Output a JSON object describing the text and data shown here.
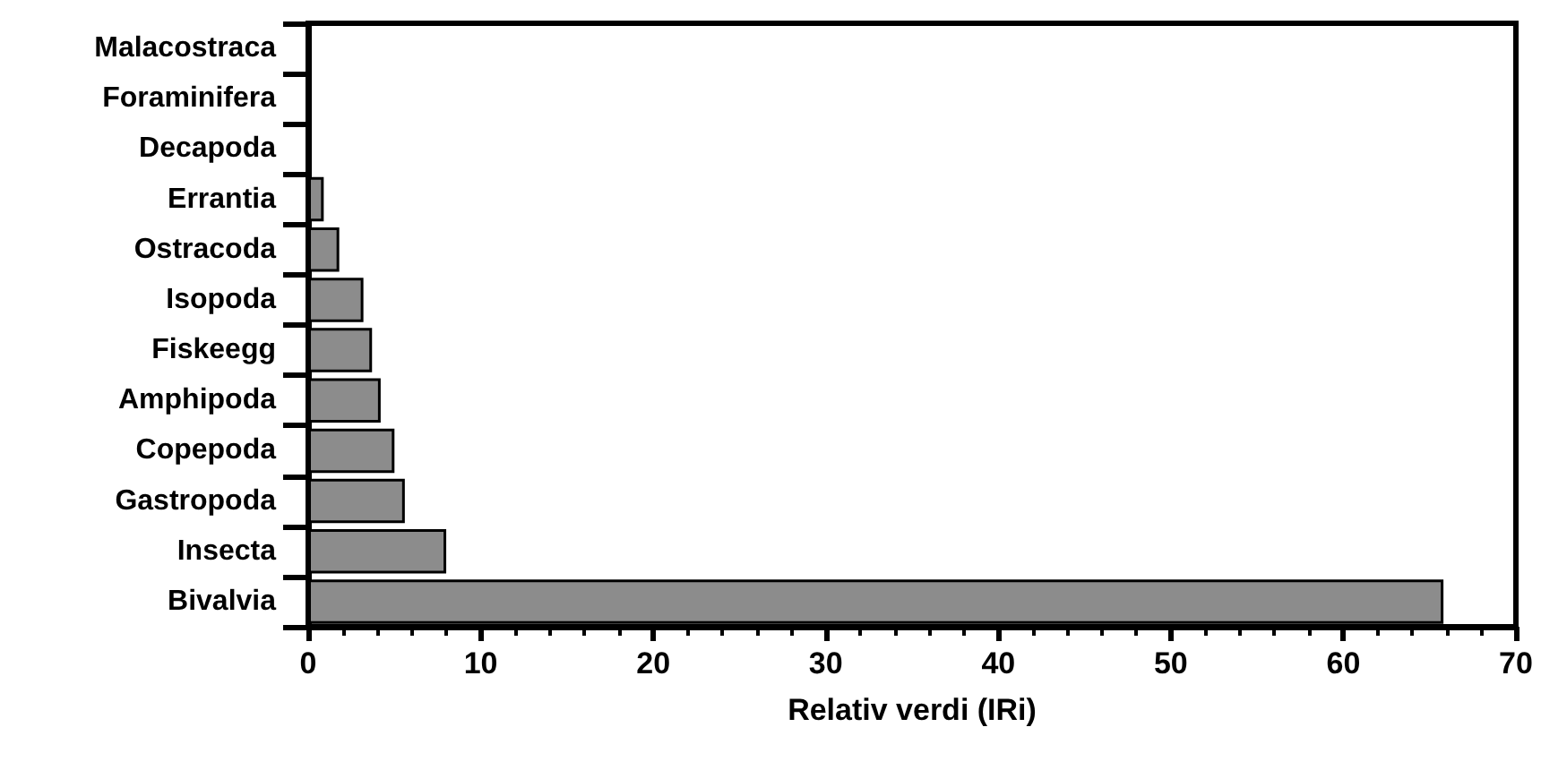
{
  "chart_data": {
    "type": "bar",
    "orientation": "horizontal",
    "xlabel": "Relativ verdi (IRi)",
    "categories": [
      "Malacostraca",
      "Foraminifera",
      "Decapoda",
      "Errantia",
      "Ostracoda",
      "Isopoda",
      "Fiskeegg",
      "Amphipoda",
      "Copepoda",
      "Gastropoda",
      "Insecta",
      "Bivalvia"
    ],
    "values": [
      0,
      0,
      0,
      0.9,
      1.8,
      3.2,
      3.7,
      4.2,
      5.0,
      5.6,
      8.0,
      65.8
    ],
    "color": "#8c8c8c",
    "xlim": [
      0,
      70
    ],
    "xticks": [
      0,
      10,
      20,
      30,
      40,
      50,
      60,
      70
    ],
    "grid": false
  }
}
